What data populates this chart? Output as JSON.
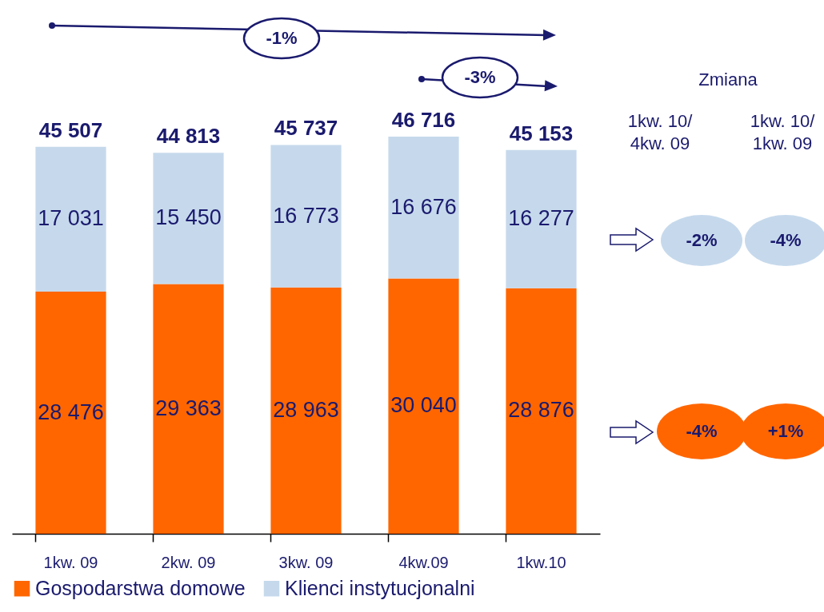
{
  "chart_data": {
    "type": "bar",
    "stacked": true,
    "categories": [
      "1kw. 09",
      "2kw. 09",
      "3kw.  09",
      "4kw.09",
      "1kw.10"
    ],
    "series": [
      {
        "name": "Gospodarstwa domowe",
        "color": "#ff6600",
        "values": [
          28476,
          29363,
          28963,
          30040,
          28876
        ],
        "value_labels": [
          "28 476",
          "29 363",
          "28 963",
          "30 040",
          "28 876"
        ]
      },
      {
        "name": "Klienci instytucjonalni",
        "color": "#c6d9ec",
        "values": [
          17031,
          15450,
          16773,
          16676,
          16277
        ],
        "value_labels": [
          "17 031",
          "15 450",
          "16 773",
          "16 676",
          "16 277"
        ]
      }
    ],
    "totals": [
      "45 507",
      "44 813",
      "45 737",
      "46 716",
      "45 153"
    ],
    "legend": "bottom",
    "annotations": [
      "-1%",
      "-3%",
      "Zmiana",
      "1kw. 10/\n4kw. 09",
      "1kw. 10/\n1kw. 09",
      "-2%",
      "-4%",
      "-4%",
      "+1%"
    ]
  }
}
